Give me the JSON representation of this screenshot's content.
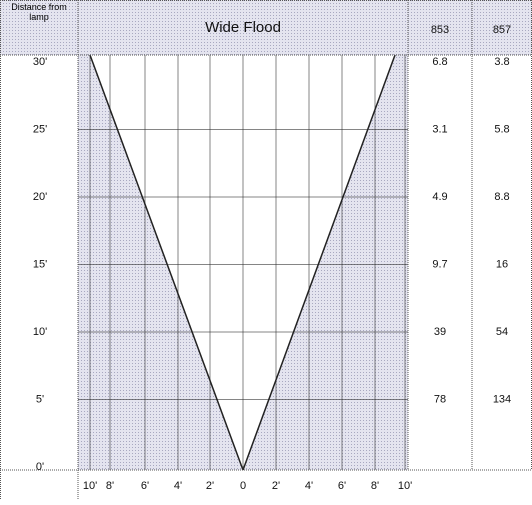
{
  "header": {
    "distance_label": "Distance from lamp",
    "title": "Wide Flood",
    "col1": "853",
    "col2": "857"
  },
  "rows": [
    {
      "distance": "30'",
      "values": [
        "6.8",
        "3.8"
      ]
    },
    {
      "distance": "25'",
      "values": [
        "3.1",
        "5.8"
      ]
    },
    {
      "distance": "20'",
      "values": [
        "4.9",
        "8.8"
      ]
    },
    {
      "distance": "15'",
      "values": [
        "9.7",
        "16"
      ]
    },
    {
      "distance": "10'",
      "values": [
        "39",
        "54"
      ]
    },
    {
      "distance": "5'",
      "values": [
        "78",
        "134"
      ]
    },
    {
      "distance": "0'"
    }
  ],
  "x_labels": [
    "10'",
    "8'",
    "6'",
    "4'",
    "2'",
    "0",
    "2'",
    "4'",
    "6'",
    "8'",
    "10'"
  ]
}
